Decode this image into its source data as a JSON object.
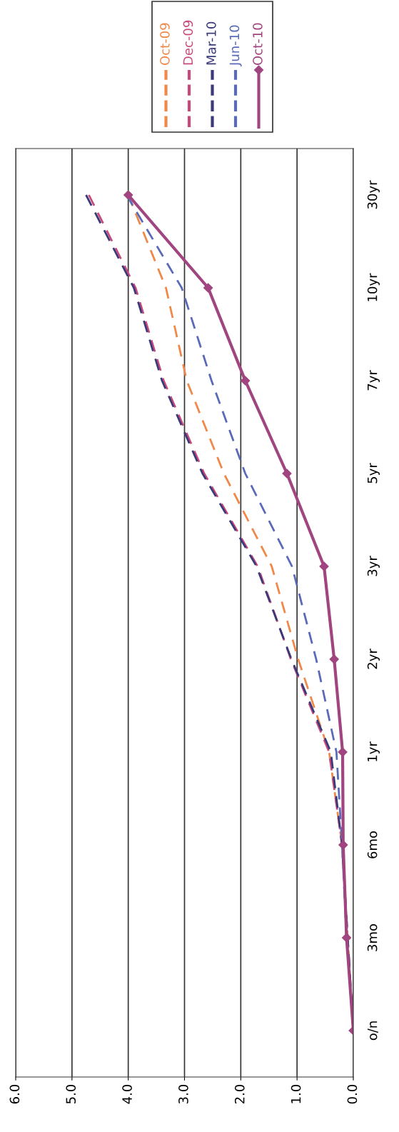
{
  "chart_data": {
    "type": "line",
    "orientation": "horizontal",
    "categories": [
      "30yr",
      "10yr",
      "7yr",
      "5yr",
      "3yr",
      "2yr",
      "1yr",
      "6mo",
      "3mo",
      "o/n"
    ],
    "series": [
      {
        "name": "Oct-09",
        "color": "#f0884a",
        "line_style": "dashed",
        "marker": "none",
        "values": [
          4.0,
          3.33,
          2.96,
          2.3,
          1.45,
          0.98,
          0.43,
          0.2,
          0.1,
          0.0
        ]
      },
      {
        "name": "Dec-09",
        "color": "#c8497a",
        "line_style": "dashed",
        "marker": "none",
        "values": [
          4.7,
          3.87,
          3.37,
          2.65,
          1.7,
          1.11,
          0.43,
          0.2,
          0.1,
          0.0
        ]
      },
      {
        "name": "Mar-10",
        "color": "#3a3a7a",
        "line_style": "dashed",
        "marker": "none",
        "values": [
          4.75,
          3.9,
          3.4,
          2.68,
          1.72,
          1.1,
          0.4,
          0.2,
          0.1,
          0.0
        ]
      },
      {
        "name": "Jun-10",
        "color": "#5a6ab8",
        "line_style": "dashed",
        "marker": "none",
        "values": [
          4.03,
          3.05,
          2.52,
          1.92,
          1.09,
          0.66,
          0.3,
          0.2,
          0.12,
          0.0
        ]
      },
      {
        "name": "Oct-10",
        "color": "#a0457f",
        "line_style": "solid",
        "marker": "diamond",
        "values": [
          4.0,
          2.58,
          1.92,
          1.18,
          0.52,
          0.34,
          0.19,
          0.18,
          0.12,
          0.0
        ]
      }
    ],
    "xlim": [
      6.0,
      0.0
    ],
    "xticks": [
      {
        "value": 6.0,
        "label": "6.0"
      },
      {
        "value": 5.0,
        "label": "5.0"
      },
      {
        "value": 4.0,
        "label": "4.0"
      },
      {
        "value": 3.0,
        "label": "3.0"
      },
      {
        "value": 2.0,
        "label": "2.0"
      },
      {
        "value": 1.0,
        "label": "1.0"
      },
      {
        "value": 0.0,
        "label": "0.0"
      }
    ],
    "grid": "x",
    "legend": "top right"
  }
}
